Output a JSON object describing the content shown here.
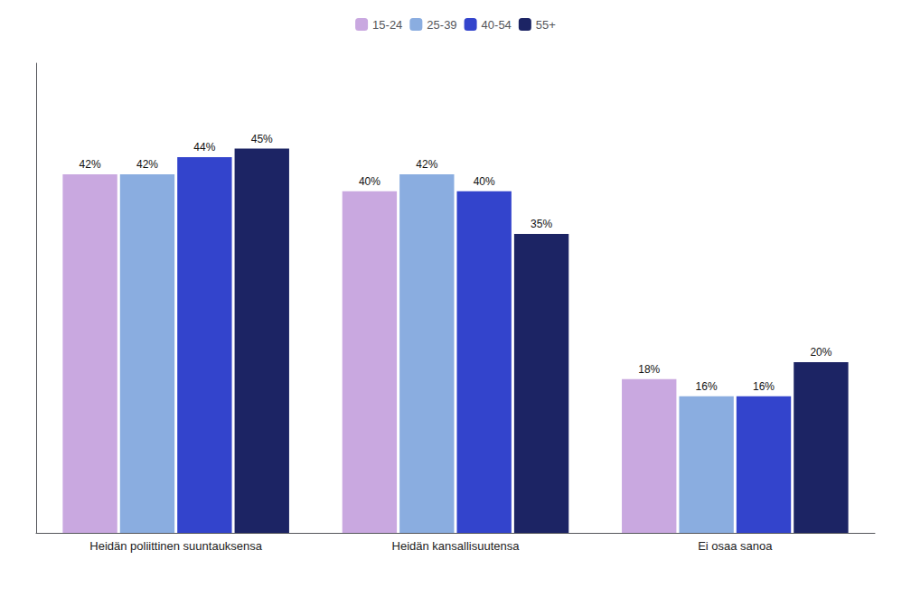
{
  "chart_data": {
    "type": "bar",
    "categories": [
      "Heidän poliittinen suuntauksensa",
      "Heidän kansallisuutensa",
      "Ei osaa sanoa"
    ],
    "series": [
      {
        "name": "15-24",
        "color": "#c9a8e0",
        "values": [
          42,
          40,
          18
        ],
        "value_labels": [
          "42%",
          "40%",
          "18%"
        ]
      },
      {
        "name": "25-39",
        "color": "#8aade0",
        "values": [
          42,
          42,
          16
        ],
        "value_labels": [
          "42%",
          "42%",
          "16%"
        ]
      },
      {
        "name": "40-54",
        "color": "#3344cc",
        "values": [
          44,
          40,
          16
        ],
        "value_labels": [
          "44%",
          "40%",
          "16%"
        ]
      },
      {
        "name": "55+",
        "color": "#1c2464",
        "values": [
          45,
          35,
          20
        ],
        "value_labels": [
          "45%",
          "35%",
          "20%"
        ]
      }
    ],
    "ylim": [
      0,
      55
    ],
    "grid": false,
    "legend": "top",
    "data_labels": true,
    "tick_labels": "x"
  }
}
